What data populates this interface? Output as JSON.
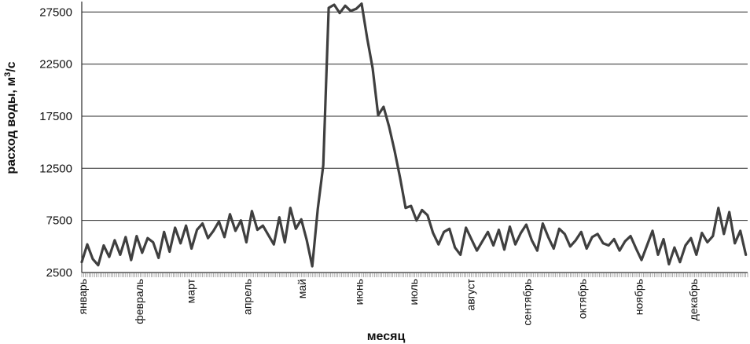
{
  "chart_data": {
    "type": "line",
    "title": "",
    "xlabel": "месяц",
    "ylabel_main": "расход воды,  м",
    "ylabel_sup": "3",
    "ylabel_tail": "/с",
    "ylim": [
      2500,
      28500
    ],
    "yticks": [
      2500,
      7500,
      12500,
      17500,
      22500,
      27500
    ],
    "ytick_labels": [
      "2500",
      "7500",
      "12500",
      "17500",
      "22500",
      "27500"
    ],
    "grid": true,
    "months": [
      "январь",
      "февраль",
      "март",
      "апрель",
      "май",
      "июнь",
      "июль",
      "август",
      "сентябрь",
      "октябрь",
      "ноябрь",
      "декабрь"
    ],
    "x_unit": "day of year",
    "x_range": [
      1,
      365
    ],
    "series": [
      {
        "color": "#3f3f3f",
        "x": [
          1,
          4,
          7,
          10,
          13,
          16,
          19,
          22,
          25,
          28,
          31,
          34,
          37,
          40,
          43,
          46,
          49,
          52,
          55,
          58,
          61,
          64,
          67,
          70,
          73,
          76,
          79,
          82,
          85,
          88,
          91,
          94,
          97,
          100,
          103,
          106,
          109,
          112,
          115,
          118,
          121,
          124,
          127,
          130,
          133,
          136,
          139,
          142,
          145,
          148,
          151,
          154,
          157,
          160,
          163,
          166,
          169,
          172,
          175,
          178,
          181,
          184,
          187,
          190,
          193,
          196,
          199,
          202,
          205,
          208,
          211,
          214,
          217,
          220,
          223,
          226,
          229,
          232,
          235,
          238,
          241,
          244,
          247,
          250,
          253,
          256,
          259,
          262,
          265,
          268,
          271,
          274,
          277,
          280,
          283,
          286,
          289,
          292,
          295,
          298,
          301,
          304,
          307,
          310,
          313,
          316,
          319,
          322,
          325,
          328,
          331,
          334,
          337,
          340,
          343,
          346,
          349,
          352,
          355,
          358,
          361,
          364
        ],
        "values": [
          3500,
          5200,
          3800,
          3200,
          5100,
          4000,
          5600,
          4200,
          5900,
          3700,
          6000,
          4400,
          5800,
          5400,
          3900,
          6400,
          4500,
          6800,
          5300,
          7000,
          4800,
          6600,
          7200,
          5800,
          6500,
          7400,
          5900,
          8100,
          6500,
          7500,
          5400,
          8400,
          6600,
          7000,
          6100,
          5200,
          7800,
          5400,
          8700,
          6700,
          7600,
          5600,
          3100,
          8600,
          12800,
          27900,
          28200,
          27400,
          28100,
          27600,
          27800,
          28300,
          25000,
          22100,
          17600,
          18400,
          16500,
          14200,
          11600,
          8700,
          8900,
          7500,
          8500,
          8000,
          6300,
          5200,
          6400,
          6700,
          4900,
          4200,
          6800,
          5700,
          4600,
          5500,
          6400,
          5100,
          6600,
          4700,
          6900,
          5200,
          6300,
          7100,
          5600,
          4600,
          7200,
          5900,
          4800,
          6700,
          6200,
          5000,
          5600,
          6400,
          4800,
          5900,
          6200,
          5300,
          5100,
          5700,
          4600,
          5500,
          6000,
          4800,
          3700,
          5100,
          6500,
          4200,
          5700,
          3300,
          4900,
          3500,
          5100,
          5800,
          4200,
          6300,
          5400,
          6000,
          8700,
          6200,
          8300,
          5300,
          6500,
          4200
        ]
      }
    ]
  }
}
